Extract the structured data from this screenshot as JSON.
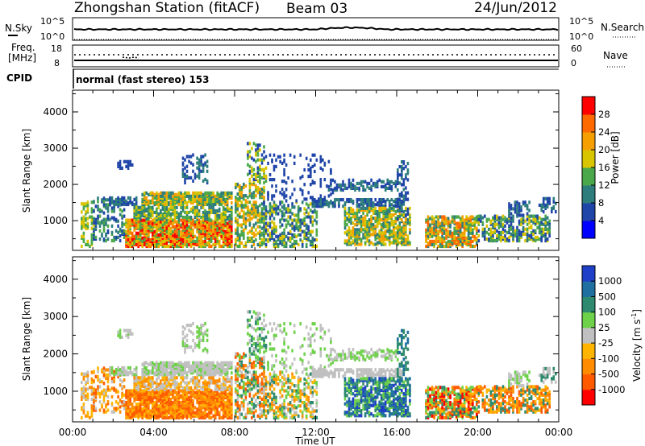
{
  "header": {
    "station": "Zhongshan Station (fitACF)",
    "beam": "Beam 03",
    "date": "24/Jun/2012"
  },
  "side_labels": {
    "nsky": "N.Sky",
    "freq": "Freq.",
    "freq_unit": "[MHz]",
    "cpid": "CPID",
    "nsearch": "N.Search",
    "nave": "Nave",
    "nsky_ticks": [
      "10^5",
      "10^0"
    ],
    "freq_ticks": [
      "18",
      "8"
    ],
    "nsearch_ticks": [
      "10^5",
      "10^0"
    ],
    "nave_ticks": [
      "60",
      "0"
    ]
  },
  "cpid_text": "normal (fast stereo) 153",
  "colors": {
    "power_scale": [
      "#0000ff",
      "#1f45a8",
      "#2e7d7d",
      "#4aa84a",
      "#d9c400",
      "#f5a000",
      "#ff6a00",
      "#ff0000"
    ],
    "velocity_scale": [
      "#ff0000",
      "#ff5a00",
      "#ff8c00",
      "#ffb400",
      "#c0c0c0",
      "#6ed14a",
      "#2e8a6e",
      "#1f6fa0",
      "#1f3fc8"
    ]
  },
  "chart_data": [
    {
      "type": "heatmap",
      "name": "power-panel",
      "xlabel": "",
      "ylabel": "Slant Range [km]",
      "x_ticks": [
        "00:00",
        "04:00",
        "08:00",
        "12:00",
        "16:00",
        "20:00",
        "00:00"
      ],
      "x_range_hours": [
        0,
        24
      ],
      "y_ticks": [
        "1000",
        "2000",
        "3000",
        "4000"
      ],
      "y_range_km": [
        180,
        4600
      ],
      "colorbar": {
        "label": "Power [dB]",
        "ticks": [
          "4",
          "8",
          "12",
          "16",
          "20",
          "24",
          "28"
        ],
        "range": [
          0,
          32
        ]
      }
    },
    {
      "type": "heatmap",
      "name": "velocity-panel",
      "xlabel": "Time UT",
      "ylabel": "Slant Range [km]",
      "x_ticks": [
        "00:00",
        "04:00",
        "08:00",
        "12:00",
        "16:00",
        "20:00",
        "00:00"
      ],
      "x_range_hours": [
        0,
        24
      ],
      "y_ticks": [
        "1000",
        "2000",
        "3000",
        "4000"
      ],
      "y_range_km": [
        180,
        4600
      ],
      "colorbar": {
        "label": "Velocity [m s",
        "label_sup": "-1",
        "label_end": "]",
        "ticks": [
          "1000",
          "500",
          "100",
          "25",
          "-25",
          "-100",
          "-500",
          "-1000"
        ]
      }
    }
  ]
}
